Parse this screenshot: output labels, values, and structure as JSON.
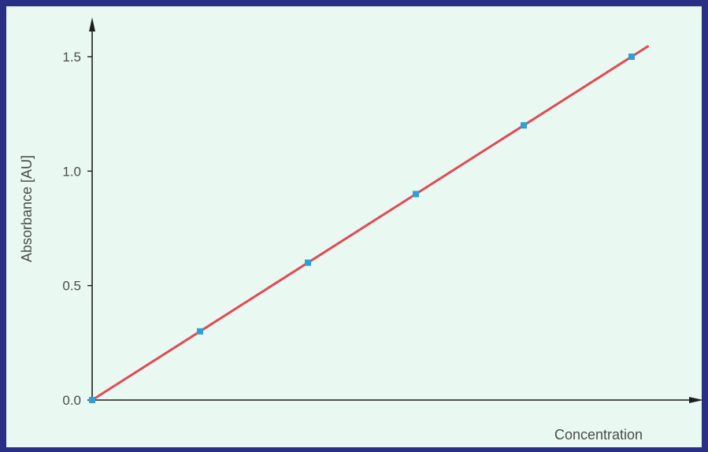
{
  "chart_data": {
    "type": "scatter",
    "title": "",
    "xlabel": "Concentration",
    "ylabel": "Absorbance [AU]",
    "x": [
      0,
      1,
      2,
      3,
      4,
      5
    ],
    "series": [
      {
        "values": [
          0.0,
          0.3,
          0.6,
          0.9,
          1.2,
          1.5
        ]
      }
    ],
    "fit_line": {
      "x": [
        0,
        5.15
      ],
      "y": [
        0.0,
        1.545
      ]
    },
    "xlim": [
      0,
      5.6
    ],
    "ylim": [
      0,
      1.65
    ],
    "ytick_labels": [
      "0.0",
      "0.5",
      "1.0",
      "1.5"
    ],
    "yticks": [
      0,
      0.5,
      1.0,
      1.5
    ],
    "grid": false,
    "colors": {
      "frame": "#2a2f86",
      "background": "#e9f9f1",
      "axis": "#1e1e1e",
      "line": "#e14a55",
      "points": "#2f9fd4"
    }
  }
}
